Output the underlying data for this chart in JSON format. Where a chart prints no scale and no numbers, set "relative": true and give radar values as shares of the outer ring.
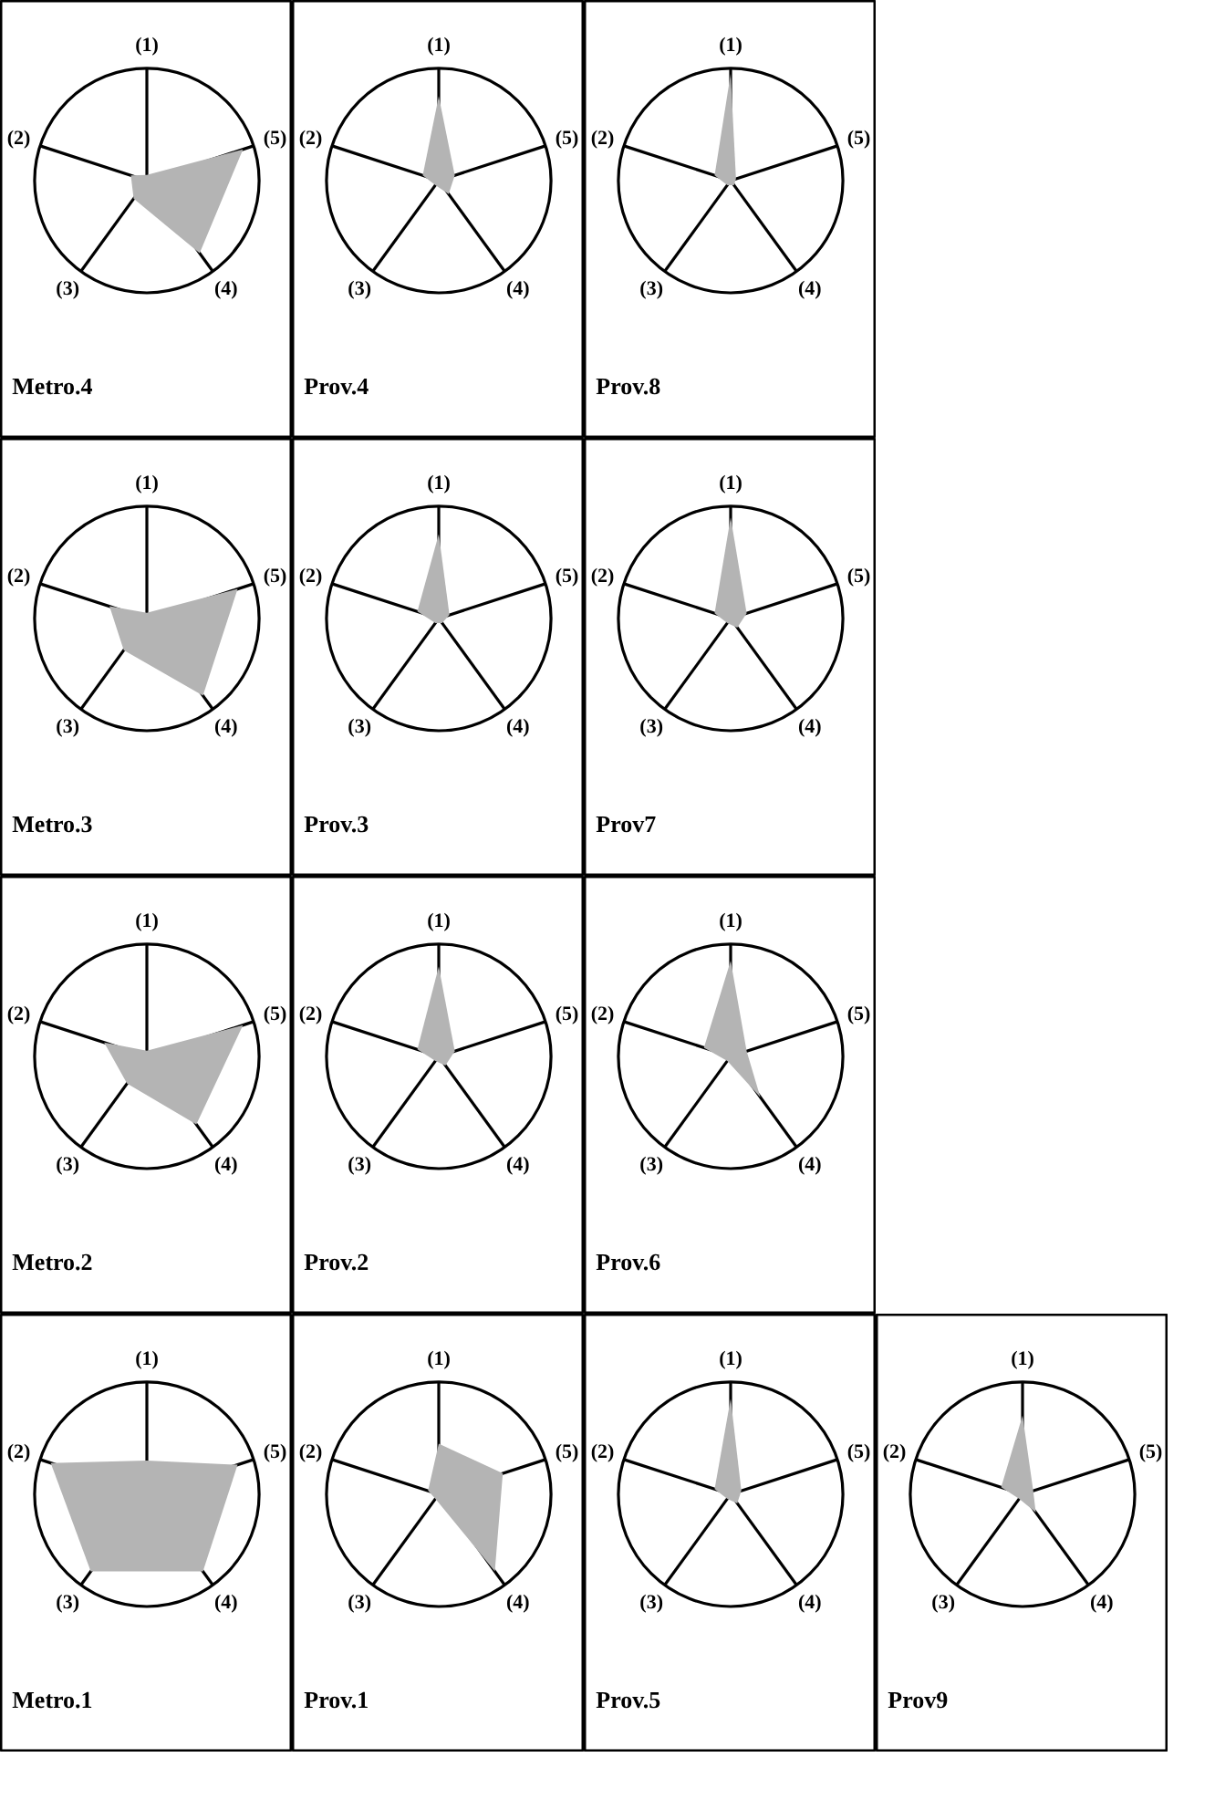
{
  "chart_data": [
    {
      "type": "radar",
      "title": "Metro.4",
      "relative": true,
      "categories": [
        "(1)",
        "(5)",
        "(4)",
        "(3)",
        "(2)"
      ],
      "series": [
        {
          "color": "#b4b4b4",
          "values": [
            0.05,
            0.9,
            0.8,
            0.2,
            0.15
          ]
        }
      ]
    },
    {
      "type": "radar",
      "title": "Prov.4",
      "relative": true,
      "categories": [
        "(1)",
        "(5)",
        "(4)",
        "(3)",
        "(2)"
      ],
      "series": [
        {
          "color": "#b4b4b4",
          "values": [
            0.75,
            0.15,
            0.15,
            0.05,
            0.15
          ]
        }
      ]
    },
    {
      "type": "radar",
      "title": "Prov.8",
      "relative": true,
      "categories": [
        "(1)",
        "(5)",
        "(4)",
        "(3)",
        "(2)"
      ],
      "series": [
        {
          "color": "#b4b4b4",
          "values": [
            0.95,
            0.05,
            0.05,
            0.05,
            0.15
          ]
        }
      ]
    },
    {
      "type": "radar",
      "title": "Metro.3",
      "relative": true,
      "categories": [
        "(1)",
        "(5)",
        "(4)",
        "(3)",
        "(2)"
      ],
      "series": [
        {
          "color": "#b4b4b4",
          "values": [
            0.05,
            0.85,
            0.85,
            0.35,
            0.35
          ]
        }
      ]
    },
    {
      "type": "radar",
      "title": "Prov.3",
      "relative": true,
      "categories": [
        "(1)",
        "(5)",
        "(4)",
        "(3)",
        "(2)"
      ],
      "series": [
        {
          "color": "#b4b4b4",
          "values": [
            0.75,
            0.1,
            0.05,
            0.05,
            0.2
          ]
        }
      ]
    },
    {
      "type": "radar",
      "title": "Prov7",
      "relative": true,
      "categories": [
        "(1)",
        "(5)",
        "(4)",
        "(3)",
        "(2)"
      ],
      "series": [
        {
          "color": "#b4b4b4",
          "values": [
            0.9,
            0.15,
            0.1,
            0.05,
            0.15
          ]
        }
      ]
    },
    {
      "type": "radar",
      "title": "Metro.2",
      "relative": true,
      "categories": [
        "(1)",
        "(5)",
        "(4)",
        "(3)",
        "(2)"
      ],
      "series": [
        {
          "color": "#b4b4b4",
          "values": [
            0.05,
            0.9,
            0.75,
            0.3,
            0.4
          ]
        }
      ]
    },
    {
      "type": "radar",
      "title": "Prov.2",
      "relative": true,
      "categories": [
        "(1)",
        "(5)",
        "(4)",
        "(3)",
        "(2)"
      ],
      "series": [
        {
          "color": "#b4b4b4",
          "values": [
            0.8,
            0.15,
            0.1,
            0.05,
            0.2
          ]
        }
      ]
    },
    {
      "type": "radar",
      "title": "Prov.6",
      "relative": true,
      "categories": [
        "(1)",
        "(5)",
        "(4)",
        "(3)",
        "(2)"
      ],
      "series": [
        {
          "color": "#b4b4b4",
          "values": [
            0.85,
            0.15,
            0.45,
            0.05,
            0.25
          ]
        }
      ]
    },
    {
      "type": "radar",
      "title": "Metro.1",
      "relative": true,
      "categories": [
        "(1)",
        "(5)",
        "(4)",
        "(3)",
        "(2)"
      ],
      "series": [
        {
          "color": "#b4b4b4",
          "values": [
            0.3,
            0.85,
            0.85,
            0.85,
            0.9
          ]
        }
      ]
    },
    {
      "type": "radar",
      "title": "Prov.1",
      "relative": true,
      "categories": [
        "(1)",
        "(5)",
        "(4)",
        "(3)",
        "(2)"
      ],
      "series": [
        {
          "color": "#b4b4b4",
          "values": [
            0.45,
            0.6,
            0.85,
            0.05,
            0.1
          ]
        }
      ]
    },
    {
      "type": "radar",
      "title": "Prov.5",
      "relative": true,
      "categories": [
        "(1)",
        "(5)",
        "(4)",
        "(3)",
        "(2)"
      ],
      "series": [
        {
          "color": "#b4b4b4",
          "values": [
            0.85,
            0.1,
            0.1,
            0.05,
            0.15
          ]
        }
      ]
    },
    {
      "type": "radar",
      "title": "Prov9",
      "relative": true,
      "categories": [
        "(1)",
        "(5)",
        "(4)",
        "(3)",
        "(2)"
      ],
      "series": [
        {
          "color": "#b4b4b4",
          "values": [
            0.7,
            0.1,
            0.2,
            0.05,
            0.2
          ]
        }
      ]
    }
  ]
}
